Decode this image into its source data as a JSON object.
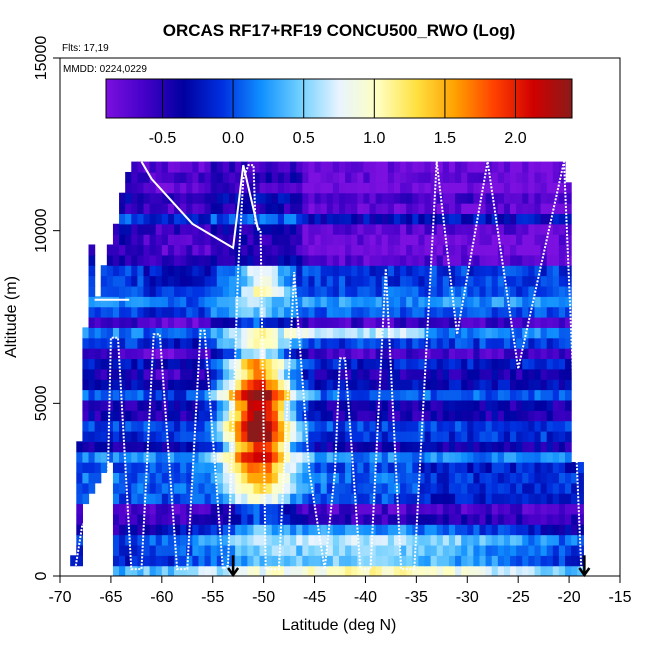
{
  "chart_data": {
    "type": "heatmap",
    "title": "ORCAS RF17+RF19 CONCU500_RWO (Log)",
    "xlabel": "Latitude (deg N)",
    "ylabel": "Altitude (m)",
    "xlim": [
      -70,
      -15
    ],
    "ylim": [
      0,
      15000
    ],
    "x_ticks": [
      -70,
      -65,
      -60,
      -55,
      -50,
      -45,
      -40,
      -35,
      -30,
      -25,
      -20,
      -15
    ],
    "y_ticks": [
      0,
      5000,
      10000,
      15000
    ],
    "flights_text": "Flts: 17,19",
    "date_text": "MMDD: 0224,0229",
    "colorbar": {
      "range": [
        -0.9,
        2.4
      ],
      "ticks": [
        -0.5,
        0.0,
        0.5,
        1.0,
        1.5,
        2.0
      ],
      "tick_labels": [
        "-0.5",
        "0.0",
        "0.5",
        "1.0",
        "1.5",
        "2.0"
      ],
      "colors": [
        "#7b10e0",
        "#4400c8",
        "#0000a0",
        "#0030e0",
        "#1090ff",
        "#70d0ff",
        "#e8f4ff",
        "#ffffc0",
        "#ffe040",
        "#ffa000",
        "#ff4000",
        "#d00000",
        "#8b1a1a"
      ]
    },
    "arrows_lat": [
      -53,
      -18.5
    ],
    "flight_track": [
      [
        -68.5,
        200
      ],
      [
        -67.8,
        1500
      ],
      [
        -67.2,
        1500
      ],
      [
        -66.5,
        200
      ],
      [
        -65.5,
        200
      ],
      [
        -65,
        6900
      ],
      [
        -64.3,
        6900
      ],
      [
        -63,
        200
      ],
      [
        -62,
        200
      ],
      [
        -60.8,
        7000
      ],
      [
        -60.2,
        7000
      ],
      [
        -58.5,
        200
      ],
      [
        -57.5,
        200
      ],
      [
        -56.2,
        7100
      ],
      [
        -55.8,
        7100
      ],
      [
        -54,
        200
      ],
      [
        -53.5,
        300
      ],
      [
        -52.5,
        8900
      ],
      [
        -52,
        11500
      ],
      [
        -51.5,
        11900
      ],
      [
        -51,
        11900
      ],
      [
        -50.8,
        10200
      ],
      [
        -50.3,
        10000
      ],
      [
        -49.8,
        200
      ],
      [
        -48.5,
        200
      ],
      [
        -47,
        8800
      ],
      [
        -45.5,
        3000
      ],
      [
        -44,
        200
      ],
      [
        -43,
        3000
      ],
      [
        -42.5,
        6300
      ],
      [
        -42,
        6300
      ],
      [
        -40.5,
        200
      ],
      [
        -39.5,
        200
      ],
      [
        -38,
        8900
      ],
      [
        -36.5,
        200
      ],
      [
        -35.2,
        200
      ],
      [
        -33,
        12000
      ],
      [
        -31,
        7000
      ],
      [
        -28,
        12000
      ],
      [
        -25,
        6000
      ],
      [
        -20.5,
        12000
      ],
      [
        -19.5,
        5000
      ],
      [
        -18.8,
        200
      ]
    ],
    "profile_path": [
      [
        -62,
        12000
      ],
      [
        -61,
        11500
      ],
      [
        -57,
        10200
      ],
      [
        -53,
        9500
      ],
      [
        -52,
        11900
      ],
      [
        -50.5,
        10000
      ]
    ]
  }
}
